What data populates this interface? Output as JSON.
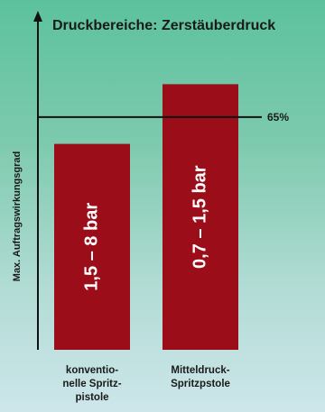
{
  "chart_data": {
    "type": "bar",
    "title": "Druckbereiche: Zerstäuberdruck",
    "ylabel": "Max. Auftragswirkungsgrad",
    "categories": [
      [
        "konventio-",
        "nelle Spritz-",
        "pistole"
      ],
      [
        "Mitteldruck-",
        "Spritzpstole"
      ]
    ],
    "bar_labels": [
      "1,5 – 8 bar",
      "0,7 – 1,5 bar"
    ],
    "values": [
      100,
      129
    ],
    "ylim": [
      0,
      155
    ],
    "reference_line": {
      "label": "65%",
      "value": 113
    },
    "bar_color": "#9b0d18",
    "axis_color": "#111111"
  }
}
